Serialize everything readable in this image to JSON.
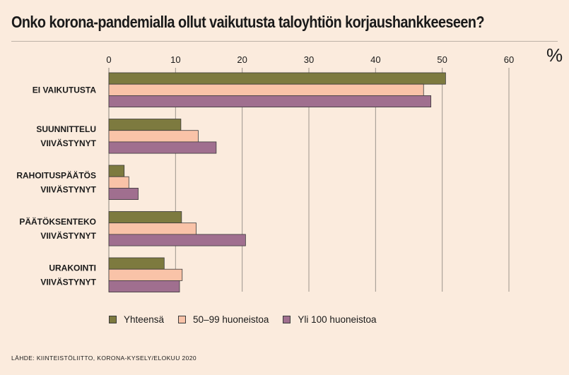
{
  "title": "Onko korona-pandemialla ollut vaikutusta taloyhtiön korjaushankkeeseen?",
  "unit": "%",
  "source": "LÄHDE: KIINTEISTÖLIITTO, KORONA-KYSELY/ELOKUU 2020",
  "chart_data": {
    "type": "bar",
    "orientation": "horizontal",
    "title": "Onko korona-pandemialla ollut vaikutusta taloyhtiön korjaushankkeeseen?",
    "xlabel": "%",
    "ylabel": "",
    "xlim": [
      0,
      60
    ],
    "ticks": [
      0,
      10,
      20,
      30,
      40,
      50,
      60
    ],
    "tick_labels": [
      "0",
      "10",
      "20",
      "30",
      "40",
      "50",
      "60"
    ],
    "grid": true,
    "legend_position": "bottom",
    "categories": [
      [
        "EI VAIKUTUSTA"
      ],
      [
        "SUUNNITTELU",
        "VIIVÄSTYNYT"
      ],
      [
        "RAHOITUSPÄÄTÖS",
        "VIIVÄSTYNYT"
      ],
      [
        "PÄÄTÖKSENTEKO",
        "VIIVÄSTYNYT"
      ],
      [
        "URAKOINTI",
        "VIIVÄSTYNYT"
      ]
    ],
    "series": [
      {
        "name": "Yhteensä",
        "color": "#7d7a3f",
        "values": [
          50.5,
          10.8,
          2.3,
          10.9,
          8.3
        ]
      },
      {
        "name": "50–99 huoneistoa",
        "color": "#f9c3a8",
        "values": [
          47.2,
          13.4,
          3.0,
          13.1,
          11.0
        ]
      },
      {
        "name": "Yli 100 huoneistoa",
        "color": "#a06f8f",
        "values": [
          48.3,
          16.1,
          4.4,
          20.5,
          10.6
        ]
      }
    ]
  }
}
